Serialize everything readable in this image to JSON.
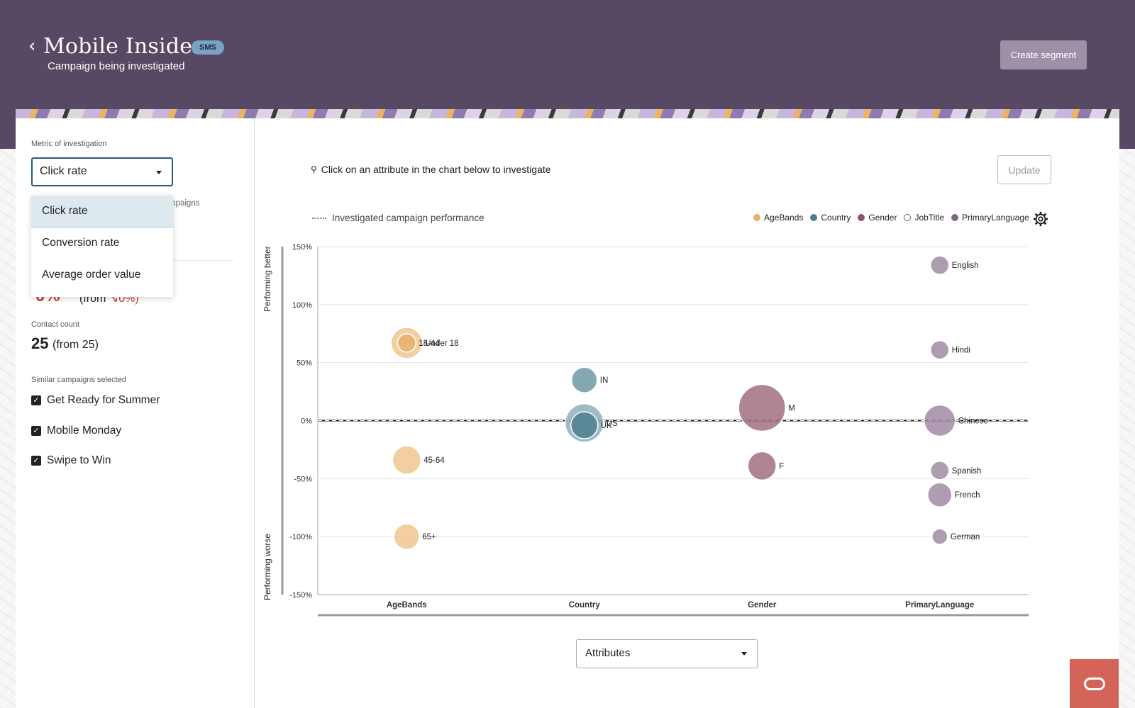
{
  "header": {
    "title": "Mobile Insider",
    "badge": "SMS",
    "subtitle": "Campaign being investigated",
    "create_segment_label": "Create segment"
  },
  "left_panel": {
    "metric_label": "Metric of investigation",
    "metric_value": "Click rate",
    "dropdown_options": [
      "Click rate",
      "Conversion rate",
      "Average order value"
    ],
    "hidden_fragment": "mpaigns",
    "performance_value": "0%",
    "performance_from_prefix": "(from",
    "performance_from_value": "0%)",
    "contact_count_label": "Contact count",
    "contact_count_value": "25",
    "contact_count_from": "(from 25)",
    "similar_label": "Similar campaigns selected",
    "campaigns": [
      "Get Ready for Summer",
      "Mobile Monday",
      "Swipe to Win"
    ]
  },
  "main": {
    "hint": "Click on an attribute in the chart below to investigate",
    "update_label": "Update",
    "baseline_legend": "Investigated campaign performance",
    "attributes_select": "Attributes"
  },
  "chart_data": {
    "type": "scatter",
    "ylabel_top": "Performing better",
    "ylabel_bottom": "Performing worse",
    "ylim": [
      -150,
      150
    ],
    "y_ticks": [
      "150%",
      "100%",
      "50%",
      "0%",
      "-50%",
      "-100%",
      "-150%"
    ],
    "categories": [
      "AgeBands",
      "Country",
      "Gender",
      "PrimaryLanguage"
    ],
    "legend": [
      {
        "name": "AgeBands",
        "color": "#e8b06c"
      },
      {
        "name": "Country",
        "color": "#4f7f8f"
      },
      {
        "name": "Gender",
        "color": "#8b5767"
      },
      {
        "name": "JobTitle",
        "color": "#ffffff"
      },
      {
        "name": "PrimaryLanguage",
        "color": "#7e6683"
      }
    ],
    "points": [
      {
        "cat": "AgeBands",
        "label": "Under 18",
        "y": 67,
        "size": 22,
        "color": "#f0c591"
      },
      {
        "cat": "AgeBands",
        "label": "18-44",
        "y": 67,
        "size": 13,
        "color": "#e8b06c"
      },
      {
        "cat": "AgeBands",
        "label": "45-64",
        "y": -34,
        "size": 20,
        "color": "#f0c591"
      },
      {
        "cat": "AgeBands",
        "label": "65+",
        "y": -100,
        "size": 18,
        "color": "#f0c591"
      },
      {
        "cat": "Country",
        "label": "IN",
        "y": 35,
        "size": 18,
        "color": "#6f98a5"
      },
      {
        "cat": "Country",
        "label": "US",
        "y": -2,
        "size": 27,
        "color": "#8eafb9"
      },
      {
        "cat": "Country",
        "label": "UK",
        "y": -4,
        "size": 19,
        "color": "#4f7f8f"
      },
      {
        "cat": "Gender",
        "label": "M",
        "y": 11,
        "size": 33,
        "color": "#a2707e"
      },
      {
        "cat": "Gender",
        "label": "F",
        "y": -39,
        "size": 20,
        "color": "#a2707e"
      },
      {
        "cat": "PrimaryLanguage",
        "label": "English",
        "y": 134,
        "size": 13,
        "color": "#a28ba4"
      },
      {
        "cat": "PrimaryLanguage",
        "label": "Hindi",
        "y": 61,
        "size": 13,
        "color": "#a28ba4"
      },
      {
        "cat": "PrimaryLanguage",
        "label": "Chinese",
        "y": 0,
        "size": 22,
        "color": "#a28ba4"
      },
      {
        "cat": "PrimaryLanguage",
        "label": "Spanish",
        "y": -43,
        "size": 13,
        "color": "#a28ba4"
      },
      {
        "cat": "PrimaryLanguage",
        "label": "French",
        "y": -64,
        "size": 17,
        "color": "#a28ba4"
      },
      {
        "cat": "PrimaryLanguage",
        "label": "German",
        "y": -100,
        "size": 11,
        "color": "#a28ba4"
      }
    ],
    "baseline": 0
  }
}
